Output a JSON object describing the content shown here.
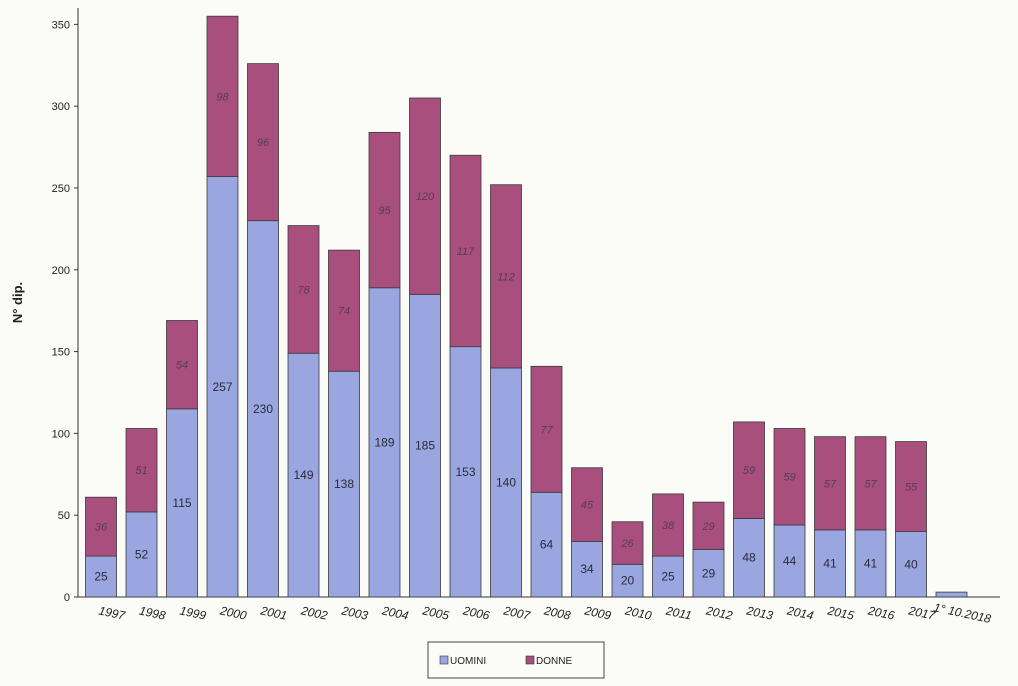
{
  "chart_data": {
    "type": "bar",
    "stacked": true,
    "title": "",
    "xlabel": "",
    "ylabel": "N° dip.",
    "ylim": [
      0,
      360
    ],
    "yticks": [
      0,
      50,
      100,
      150,
      200,
      250,
      300,
      350
    ],
    "categories": [
      "1997",
      "1998",
      "1999",
      "2000",
      "2001",
      "2002",
      "2003",
      "2004",
      "2005",
      "2006",
      "2007",
      "2008",
      "2009",
      "2010",
      "2011",
      "2012",
      "2013",
      "2014",
      "2015",
      "2016",
      "2017",
      "1° 10.2018"
    ],
    "series": [
      {
        "name": "UOMINI",
        "color": "#9aa6e0",
        "values": [
          25,
          52,
          115,
          257,
          230,
          149,
          138,
          189,
          185,
          153,
          140,
          64,
          34,
          20,
          25,
          29,
          48,
          44,
          41,
          41,
          40,
          3
        ],
        "labels": [
          "25",
          "52",
          "115",
          "257",
          "230",
          "149",
          "138",
          "189",
          "185",
          "153",
          "140",
          "64",
          "34",
          "20",
          "25",
          "29",
          "48",
          "44",
          "41",
          "41",
          "40",
          ""
        ]
      },
      {
        "name": "DONNE",
        "color": "#a84f7e",
        "values": [
          36,
          51,
          54,
          98,
          96,
          78,
          74,
          95,
          120,
          117,
          112,
          77,
          45,
          26,
          38,
          29,
          59,
          59,
          57,
          57,
          55,
          0
        ],
        "labels": [
          "36",
          "51",
          "54",
          "98",
          "96",
          "78",
          "74",
          "95",
          "120",
          "117",
          "112",
          "77",
          "45",
          "26",
          "38",
          "29",
          "59",
          "59",
          "57",
          "57",
          "55",
          ""
        ]
      }
    ],
    "grid": false,
    "legend_position": "bottom"
  }
}
